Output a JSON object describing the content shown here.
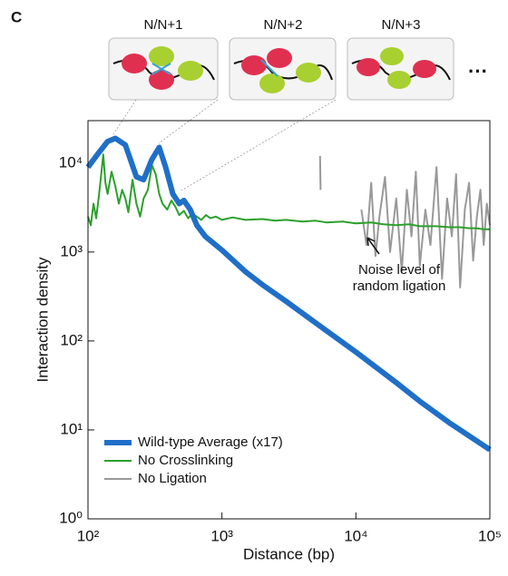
{
  "panel_label": "C",
  "illustrations": {
    "labels": [
      "N/N+1",
      "N/N+2",
      "N/N+3"
    ],
    "more": "···"
  },
  "chart_data": {
    "type": "line",
    "xscale": "log",
    "yscale": "log",
    "xlabel": "Distance (bp)",
    "ylabel": "Interaction density",
    "xlim": [
      100,
      100000
    ],
    "ylim": [
      1,
      30000
    ],
    "xticks": [
      {
        "value": 100,
        "label": "10²"
      },
      {
        "value": 1000,
        "label": "10³"
      },
      {
        "value": 10000,
        "label": "10⁴"
      },
      {
        "value": 100000,
        "label": "10⁵"
      }
    ],
    "yticks": [
      {
        "value": 1,
        "label": "10⁰"
      },
      {
        "value": 10,
        "label": "10¹"
      },
      {
        "value": 100,
        "label": "10²"
      },
      {
        "value": 1000,
        "label": "10³"
      },
      {
        "value": 10000,
        "label": "10⁴"
      }
    ],
    "legend": "lower left",
    "annotation": [
      "Noise level of",
      "random ligation"
    ],
    "series": [
      {
        "name": "No Ligation",
        "color": "#999999",
        "width": 2,
        "x": [
          5400,
          5450,
          8000,
          11000,
          12000,
          13000,
          14000,
          15000,
          16500,
          18000,
          20000,
          22000,
          24000,
          26000,
          28000,
          30000,
          33000,
          36000,
          40000,
          44000,
          48000,
          52000,
          56000,
          60000,
          65000,
          70000,
          75000,
          80000,
          85000,
          90000,
          95000,
          100000
        ],
        "values": [
          12000,
          5000,
          null,
          3000,
          1200,
          6000,
          900,
          2500,
          7000,
          1000,
          4000,
          600,
          5000,
          1500,
          8000,
          700,
          3000,
          1200,
          9000,
          500,
          4000,
          1500,
          7500,
          400,
          3000,
          6000,
          800,
          2500,
          5000,
          1200,
          3500,
          2000
        ]
      },
      {
        "name": "No Crosslinking",
        "color": "#2ca02c",
        "width": 2,
        "x": [
          100,
          105,
          110,
          115,
          120,
          125,
          130,
          135,
          140,
          150,
          160,
          170,
          180,
          190,
          200,
          215,
          230,
          245,
          260,
          280,
          300,
          320,
          340,
          360,
          390,
          420,
          450,
          480,
          520,
          560,
          600,
          650,
          700,
          760,
          820,
          900,
          1000,
          1200,
          1500,
          2000,
          2500,
          3000,
          4000,
          5000,
          6000,
          8000,
          10000,
          13000,
          16000,
          20000,
          25000,
          30000,
          40000,
          50000,
          60000,
          70000,
          80000,
          90000,
          100000
        ],
        "values": [
          2500,
          2000,
          3500,
          2400,
          4000,
          7000,
          12500,
          6000,
          4500,
          8000,
          5500,
          3500,
          5000,
          4000,
          2800,
          6500,
          3500,
          2500,
          4000,
          5000,
          9500,
          7500,
          4500,
          3500,
          3000,
          3800,
          3200,
          2600,
          2900,
          2400,
          2700,
          2500,
          2300,
          2600,
          2400,
          2500,
          2300,
          2450,
          2300,
          2350,
          2250,
          2300,
          2200,
          2250,
          2150,
          2200,
          2100,
          2150,
          2050,
          2000,
          2050,
          1950,
          1950,
          1900,
          1900,
          1850,
          1850,
          1800,
          1800
        ]
      },
      {
        "name": "Wild-type Average (x17)",
        "color": "#1f6fc8",
        "width": 6,
        "x": [
          100,
          120,
          140,
          160,
          190,
          230,
          260,
          300,
          340,
          380,
          430,
          480,
          520,
          580,
          650,
          750,
          1000,
          1500,
          2000,
          3000,
          5000,
          10000,
          20000,
          30000,
          50000,
          100000
        ],
        "values": [
          9000,
          13000,
          17500,
          19000,
          16000,
          7000,
          6500,
          11000,
          15000,
          9000,
          4500,
          3500,
          3800,
          3000,
          2000,
          1500,
          1050,
          600,
          430,
          280,
          160,
          75,
          34,
          21,
          12,
          6
        ]
      }
    ]
  }
}
